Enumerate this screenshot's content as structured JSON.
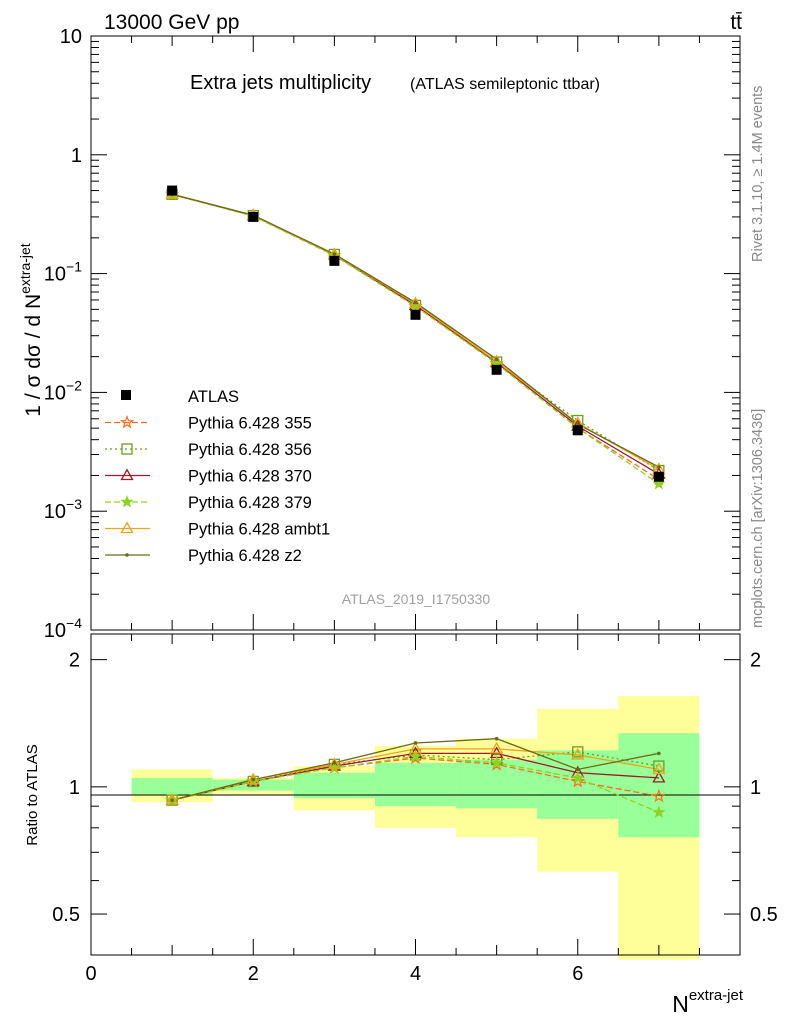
{
  "header": {
    "left": "13000 GeV pp",
    "right": "tt̄"
  },
  "side_labels": {
    "rivet": "Rivet 3.1.10, ≥ 1.4M events",
    "mcplots": "mcplots.cern.ch [arXiv:1306.3436]"
  },
  "chart_data": [
    {
      "type": "line",
      "panel": "main",
      "title": "Extra jets multiplicity",
      "subtitle": "(ATLAS semileptonic ttbar)",
      "watermark": "ATLAS_2019_I1750330",
      "ylabel": "1 / σ dσ / d N",
      "ylabel_sup": "extra-jet",
      "xlim": [
        0,
        8
      ],
      "ylim": [
        0.0001,
        10
      ],
      "yscale": "log",
      "x_ticks": [
        0,
        2,
        4,
        6
      ],
      "y_tick_labels": [
        {
          "value": 10,
          "base": "10",
          "exp": ""
        },
        {
          "value": 1,
          "base": "1",
          "exp": ""
        },
        {
          "value": 0.1,
          "base": "10",
          "exp": "−1"
        },
        {
          "value": 0.01,
          "base": "10",
          "exp": "−2"
        },
        {
          "value": 0.001,
          "base": "10",
          "exp": "−3"
        },
        {
          "value": 0.0001,
          "base": "10",
          "exp": "−4"
        }
      ],
      "legend_position": "middle-left",
      "x": [
        1,
        2,
        3,
        4,
        5,
        6,
        7
      ],
      "data": {
        "name": "ATLAS",
        "values": [
          0.5,
          0.3,
          0.128,
          0.045,
          0.0155,
          0.0048,
          0.00195
        ],
        "color": "#000000",
        "marker": "square"
      },
      "series": [
        {
          "name": "Pythia 6.428 355",
          "color": "#ff6a1a",
          "marker": "star-open",
          "dash": "6,3",
          "values": [
            0.465,
            0.305,
            0.142,
            0.053,
            0.0175,
            0.005,
            0.00185
          ]
        },
        {
          "name": "Pythia 6.428 356",
          "color": "#6b9e1a",
          "marker": "square-open",
          "dash": "2,3",
          "values": [
            0.465,
            0.308,
            0.145,
            0.054,
            0.018,
            0.0058,
            0.0022
          ]
        },
        {
          "name": "Pythia 6.428 370",
          "color": "#9c1a2a",
          "marker": "triangle-open",
          "dash": "",
          "values": [
            0.465,
            0.308,
            0.144,
            0.054,
            0.0178,
            0.0052,
            0.00205
          ]
        },
        {
          "name": "Pythia 6.428 379",
          "color": "#8ed320",
          "marker": "star",
          "dash": "6,3",
          "values": [
            0.465,
            0.305,
            0.142,
            0.053,
            0.0175,
            0.005,
            0.0017
          ]
        },
        {
          "name": "Pythia 6.428 ambt1",
          "color": "#f0a21a",
          "marker": "triangle-open",
          "dash": "",
          "values": [
            0.465,
            0.31,
            0.145,
            0.056,
            0.0182,
            0.0055,
            0.00225
          ]
        },
        {
          "name": "Pythia 6.428 z2",
          "color": "#6b6b14",
          "marker": "dot",
          "dash": "",
          "values": [
            0.465,
            0.31,
            0.146,
            0.057,
            0.019,
            0.0054,
            0.00235
          ]
        }
      ]
    },
    {
      "type": "line",
      "panel": "ratio",
      "ylabel": "Ratio to ATLAS",
      "xlabel": "N",
      "xlabel_sup": "extra-jet",
      "xlim": [
        0,
        8
      ],
      "ylim": [
        0.4,
        2.3
      ],
      "yscale": "log",
      "x_ticks": [
        0,
        2,
        4,
        6
      ],
      "y_ticks": [
        0.5,
        1,
        2
      ],
      "x": [
        1,
        2,
        3,
        4,
        5,
        6,
        7
      ],
      "bands": {
        "green_color": "#99ff99",
        "yellow_color": "#ffff99",
        "bins": [
          {
            "x0": 0.5,
            "x1": 1.5,
            "green": [
              0.96,
              1.05
            ],
            "yellow": [
              0.92,
              1.1
            ]
          },
          {
            "x0": 1.5,
            "x1": 2.5,
            "green": [
              0.98,
              1.04
            ],
            "yellow": [
              0.96,
              1.05
            ]
          },
          {
            "x0": 2.5,
            "x1": 3.5,
            "green": [
              0.94,
              1.08
            ],
            "yellow": [
              0.88,
              1.12
            ]
          },
          {
            "x0": 3.5,
            "x1": 4.5,
            "green": [
              0.9,
              1.14
            ],
            "yellow": [
              0.8,
              1.25
            ]
          },
          {
            "x0": 4.5,
            "x1": 5.5,
            "green": [
              0.89,
              1.16
            ],
            "yellow": [
              0.76,
              1.3
            ]
          },
          {
            "x0": 5.5,
            "x1": 6.5,
            "green": [
              0.84,
              1.22
            ],
            "yellow": [
              0.63,
              1.53
            ]
          },
          {
            "x0": 6.5,
            "x1": 7.5,
            "green": [
              0.76,
              1.34
            ],
            "yellow": [
              0.39,
              1.64
            ]
          }
        ]
      },
      "series": [
        {
          "name": "Pythia 6.428 355",
          "values": [
            0.93,
            1.03,
            1.11,
            1.17,
            1.13,
            1.03,
            0.95
          ]
        },
        {
          "name": "Pythia 6.428 356",
          "values": [
            0.93,
            1.03,
            1.13,
            1.19,
            1.16,
            1.21,
            1.12
          ]
        },
        {
          "name": "Pythia 6.428 370",
          "values": [
            0.93,
            1.03,
            1.12,
            1.2,
            1.2,
            1.08,
            1.05
          ]
        },
        {
          "name": "Pythia 6.428 379",
          "values": [
            0.93,
            1.03,
            1.11,
            1.18,
            1.14,
            1.05,
            0.87
          ]
        },
        {
          "name": "Pythia 6.428 ambt1",
          "values": [
            0.93,
            1.04,
            1.13,
            1.23,
            1.23,
            1.19,
            1.1
          ]
        },
        {
          "name": "Pythia 6.428 z2",
          "values": [
            0.93,
            1.04,
            1.14,
            1.27,
            1.3,
            1.1,
            1.2
          ]
        }
      ]
    }
  ]
}
